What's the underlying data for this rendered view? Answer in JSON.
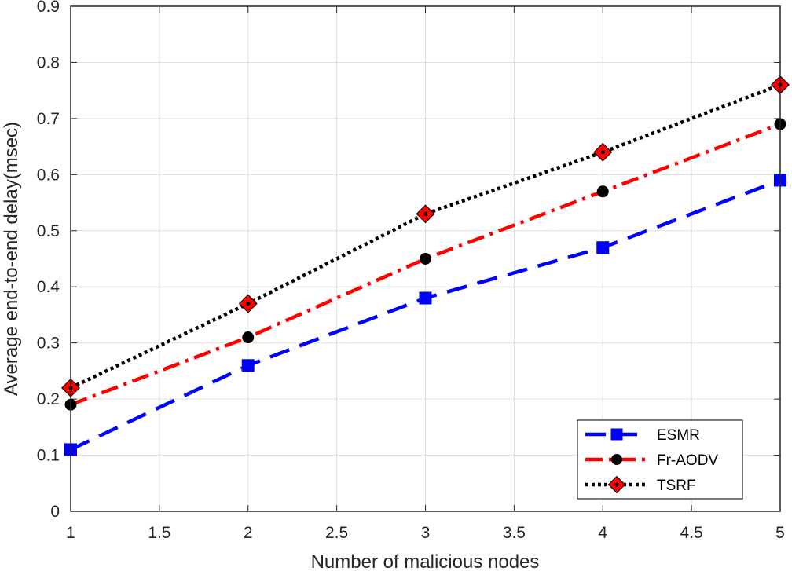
{
  "chart_data": {
    "type": "line",
    "xlabel": "Number of malicious nodes",
    "ylabel": "Average end-to-end delay(msec)",
    "xlim": [
      1,
      5
    ],
    "ylim": [
      0,
      0.9
    ],
    "xticks": [
      "1",
      "1.5",
      "2",
      "2.5",
      "3",
      "3.5",
      "4",
      "4.5",
      "5"
    ],
    "yticks": [
      "0",
      "0.1",
      "0.2",
      "0.3",
      "0.4",
      "0.5",
      "0.6",
      "0.7",
      "0.8",
      "0.9"
    ],
    "grid": true,
    "legend_position": "bottom-right",
    "x": [
      1,
      2,
      3,
      4,
      5
    ],
    "series": [
      {
        "name": "ESMR",
        "values": [
          0.11,
          0.26,
          0.38,
          0.47,
          0.59
        ],
        "color": "#0000ff",
        "marker": "square",
        "line_style": "dashed"
      },
      {
        "name": "Fr-AODV",
        "values": [
          0.19,
          0.31,
          0.45,
          0.57,
          0.69
        ],
        "color": "#ff0000",
        "marker_color": "#000000",
        "marker": "circle",
        "line_style": "dash-dot"
      },
      {
        "name": "TSRF",
        "values": [
          0.22,
          0.37,
          0.53,
          0.64,
          0.76
        ],
        "color": "#000000",
        "marker_color": "#ff0000",
        "marker": "diamond",
        "line_style": "dotted"
      }
    ]
  }
}
